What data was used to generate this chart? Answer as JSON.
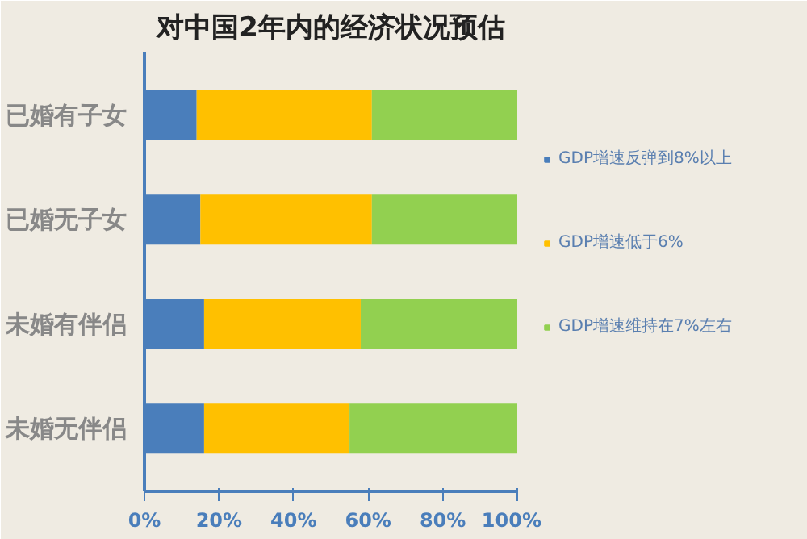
{
  "chart_data": {
    "type": "bar",
    "title": "对中国2年内的经济状况预估",
    "orientation": "horizontal",
    "stacked": true,
    "categories": [
      "已婚有子女",
      "已婚无子女",
      "未婚有伴侣",
      "未婚无伴侣"
    ],
    "series": [
      {
        "name": "GDP增速反弹到8%以上",
        "color": "#4a7ebb",
        "values": [
          14,
          15,
          16,
          16
        ]
      },
      {
        "name": "GDP增速低于6%",
        "color": "#ffc000",
        "values": [
          47,
          46,
          42,
          39
        ]
      },
      {
        "name": "GDP增速维持在7%左右",
        "color": "#92d050",
        "values": [
          39,
          39,
          42,
          45
        ]
      }
    ],
    "xlim": [
      0,
      100
    ],
    "xticks": [
      {
        "value": 0,
        "label": "0%"
      },
      {
        "value": 20,
        "label": "20%"
      },
      {
        "value": 40,
        "label": "40%"
      },
      {
        "value": 60,
        "label": "60%"
      },
      {
        "value": 80,
        "label": "80%"
      },
      {
        "value": 100,
        "label": "100%"
      }
    ],
    "grid": false,
    "legend": "right"
  }
}
